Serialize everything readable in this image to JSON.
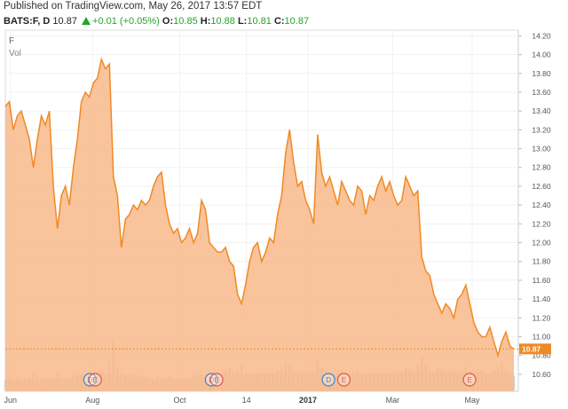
{
  "header": {
    "published": "Published on TradingView.com, May 26, 2017 13:57 EDT",
    "symbol": "BATS:F, D",
    "last": "10.87",
    "change": "+0.01 (+0.05%)",
    "open_label": "O:",
    "open": "10.85",
    "high_label": "H:",
    "high": "10.88",
    "low_label": "L:",
    "low": "10.81",
    "close_label": "C:",
    "close": "10.87"
  },
  "pane_labels": {
    "symbol": "F",
    "volume": "Vol"
  },
  "last_price_tag": "10.87",
  "colors": {
    "line": "#f08a24",
    "fill": "#f8b98a",
    "up": "#27a32b",
    "dividend": "#3a86d4",
    "earnings": "#e0574f"
  },
  "chart_data": {
    "type": "area",
    "y_ticks": [
      "14.20",
      "14.00",
      "13.80",
      "13.60",
      "13.40",
      "13.20",
      "13.00",
      "12.80",
      "12.60",
      "12.40",
      "12.20",
      "12.00",
      "11.80",
      "11.60",
      "11.40",
      "11.20",
      "11.00",
      "10.80",
      "10.60"
    ],
    "x_ticks": [
      {
        "label": "Jun",
        "bold": false,
        "t": 0.01
      },
      {
        "label": "Aug",
        "bold": false,
        "t": 0.17
      },
      {
        "label": "Oct",
        "bold": false,
        "t": 0.34
      },
      {
        "label": "14",
        "bold": false,
        "t": 0.47
      },
      {
        "label": "2017",
        "bold": true,
        "t": 0.59
      },
      {
        "label": "Mar",
        "bold": false,
        "t": 0.755
      },
      {
        "label": "May",
        "bold": false,
        "t": 0.91
      }
    ],
    "ylim": [
      10.42,
      14.26
    ],
    "close": [
      13.45,
      13.5,
      13.2,
      13.35,
      13.4,
      13.25,
      13.1,
      12.8,
      13.1,
      13.35,
      13.25,
      13.4,
      12.6,
      12.15,
      12.5,
      12.6,
      12.4,
      12.8,
      13.1,
      13.5,
      13.6,
      13.55,
      13.7,
      13.75,
      13.95,
      13.85,
      13.9,
      12.7,
      12.5,
      11.95,
      12.25,
      12.3,
      12.4,
      12.35,
      12.45,
      12.4,
      12.45,
      12.6,
      12.7,
      12.75,
      12.4,
      12.2,
      12.1,
      12.15,
      12.0,
      12.05,
      12.15,
      12.0,
      12.1,
      12.45,
      12.35,
      12.0,
      11.95,
      11.9,
      11.9,
      11.95,
      11.8,
      11.75,
      11.45,
      11.35,
      11.55,
      11.8,
      11.95,
      12.0,
      11.8,
      11.9,
      12.05,
      12.0,
      12.3,
      12.5,
      12.95,
      13.2,
      12.85,
      12.6,
      12.65,
      12.45,
      12.35,
      12.2,
      13.15,
      12.75,
      12.6,
      12.7,
      12.55,
      12.4,
      12.65,
      12.55,
      12.45,
      12.4,
      12.6,
      12.55,
      12.3,
      12.5,
      12.45,
      12.6,
      12.7,
      12.55,
      12.65,
      12.5,
      12.4,
      12.45,
      12.7,
      12.6,
      12.5,
      12.55,
      11.85,
      11.7,
      11.65,
      11.45,
      11.35,
      11.25,
      11.35,
      11.3,
      11.2,
      11.4,
      11.45,
      11.55,
      11.35,
      11.15,
      11.05,
      11.0,
      11.0,
      11.1,
      10.95,
      10.8,
      10.95,
      11.05,
      10.9,
      10.87
    ],
    "volume": [
      0.18,
      0.2,
      0.15,
      0.25,
      0.2,
      0.18,
      0.22,
      0.3,
      0.25,
      0.2,
      0.18,
      0.15,
      0.2,
      0.3,
      0.22,
      0.18,
      0.2,
      0.25,
      0.3,
      0.28,
      0.22,
      0.2,
      0.25,
      0.3,
      0.35,
      0.28,
      0.5,
      0.9,
      0.4,
      0.3,
      0.25,
      0.2,
      0.22,
      0.18,
      0.2,
      0.22,
      0.2,
      0.18,
      0.25,
      0.22,
      0.2,
      0.25,
      0.2,
      0.18,
      0.2,
      0.22,
      0.2,
      0.25,
      0.3,
      0.28,
      0.22,
      0.2,
      0.25,
      0.3,
      0.28,
      0.35,
      0.4,
      0.3,
      0.35,
      0.45,
      0.3,
      0.25,
      0.3,
      0.28,
      0.22,
      0.25,
      0.3,
      0.28,
      0.35,
      0.4,
      0.5,
      0.45,
      0.35,
      0.3,
      0.25,
      0.3,
      0.28,
      0.3,
      0.55,
      0.4,
      0.35,
      0.3,
      0.28,
      0.3,
      0.35,
      0.3,
      0.28,
      0.3,
      0.35,
      0.3,
      0.28,
      0.3,
      0.32,
      0.3,
      0.28,
      0.3,
      0.28,
      0.3,
      0.35,
      0.3,
      0.4,
      0.35,
      0.3,
      0.45,
      0.6,
      0.45,
      0.35,
      0.3,
      0.4,
      0.35,
      0.3,
      0.32,
      0.35,
      0.3,
      0.35,
      0.4,
      0.35,
      0.3,
      0.32,
      0.35,
      0.3,
      0.28,
      0.35,
      0.4,
      0.5,
      0.35,
      0.3,
      0.25
    ],
    "events": [
      {
        "label": "D",
        "kind": "dividend",
        "t": 0.165
      },
      {
        "label": "E",
        "kind": "earnings",
        "t": 0.175
      },
      {
        "label": "D",
        "kind": "dividend",
        "t": 0.402
      },
      {
        "label": "E",
        "kind": "earnings",
        "t": 0.412
      },
      {
        "label": "D",
        "kind": "dividend",
        "t": 0.63
      },
      {
        "label": "E",
        "kind": "earnings",
        "t": 0.66
      },
      {
        "label": "E",
        "kind": "earnings",
        "t": 0.905
      }
    ]
  }
}
